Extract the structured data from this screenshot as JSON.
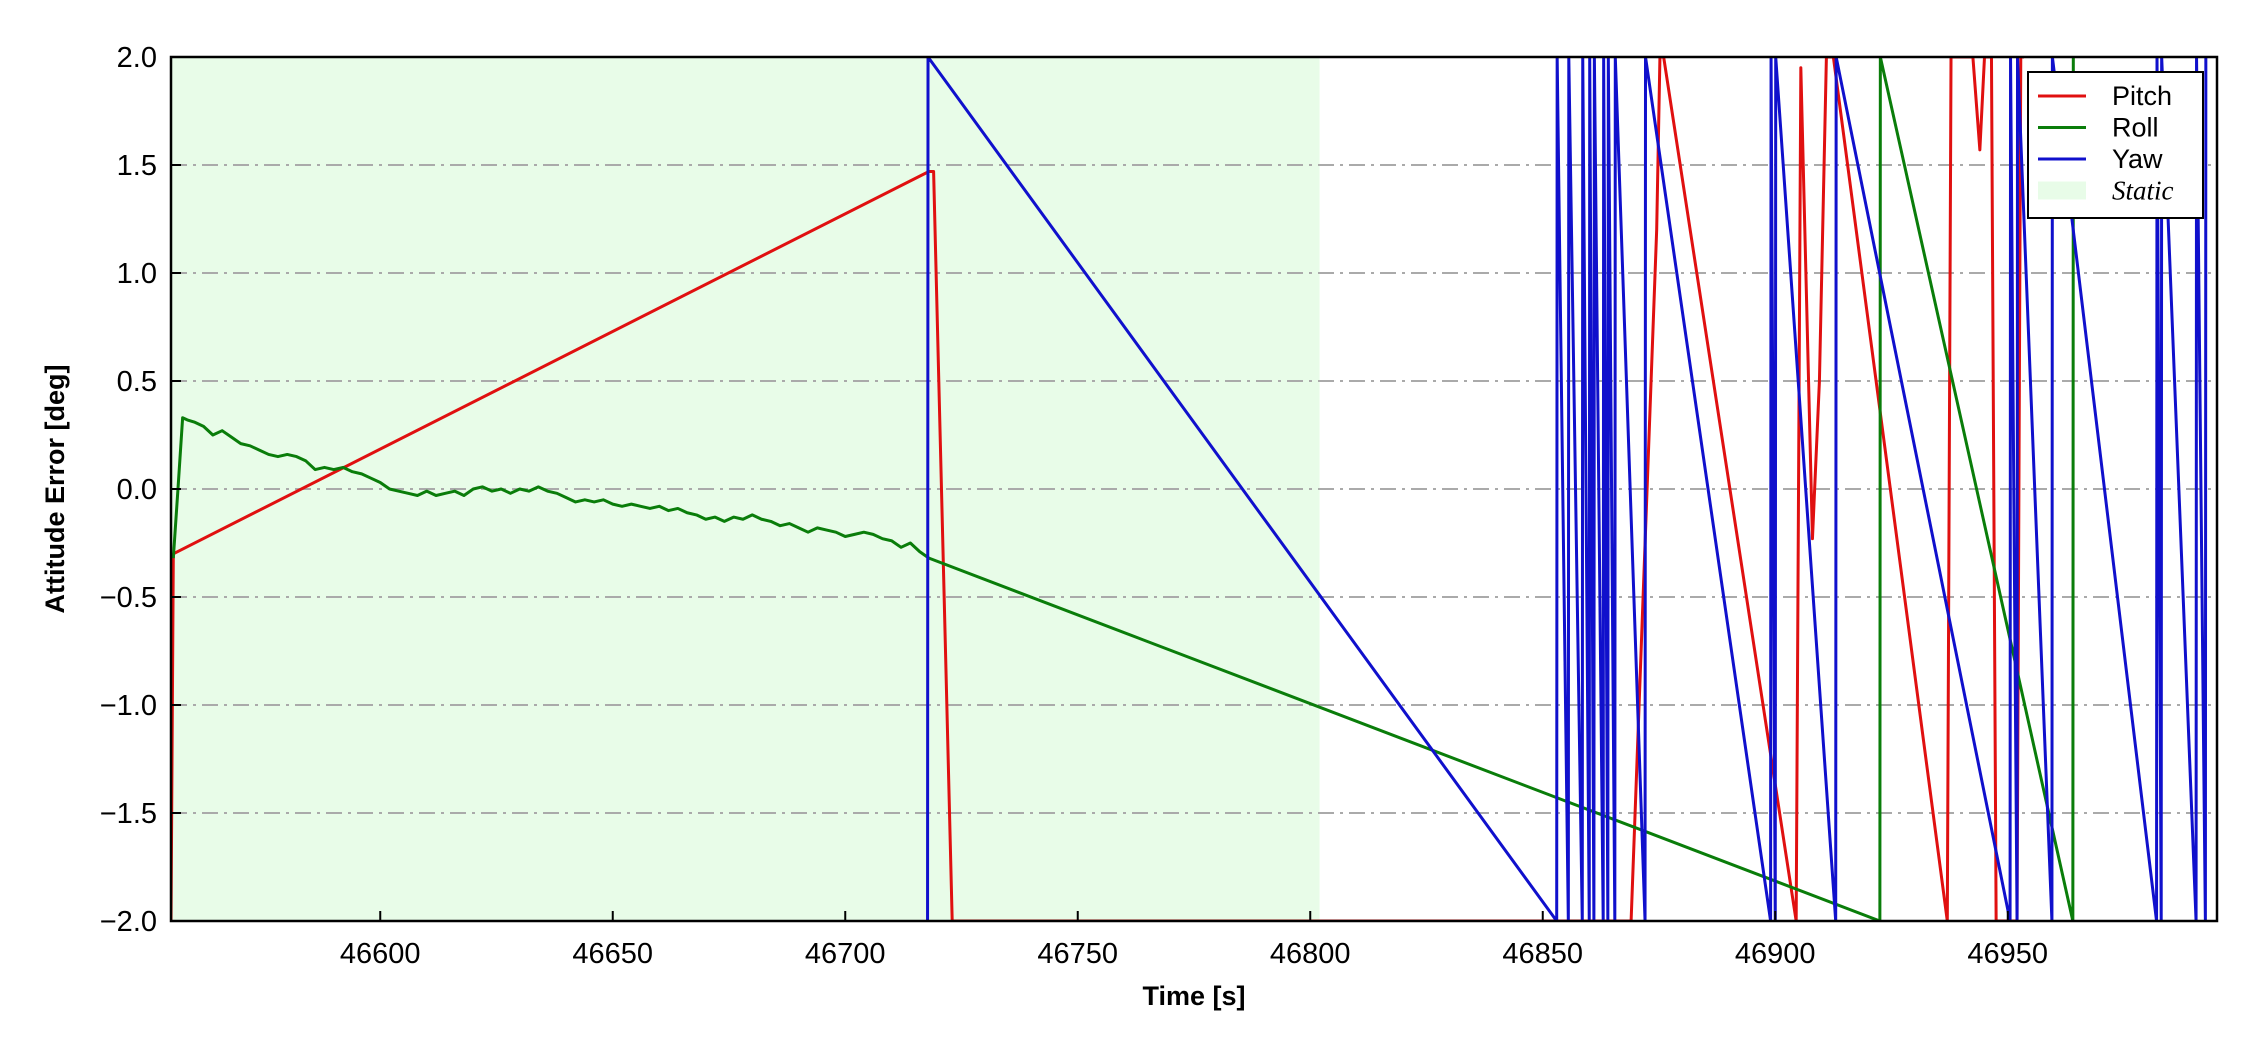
{
  "chart_data": {
    "type": "line",
    "title": "",
    "xlabel": "Time [s]",
    "ylabel": "Attitude Error [deg]",
    "xlim": [
      46555,
      46995
    ],
    "ylim": [
      -2.0,
      2.0
    ],
    "xticks": [
      46600,
      46650,
      46700,
      46750,
      46800,
      46850,
      46900,
      46950
    ],
    "xtick_labels": [
      "46600",
      "46650",
      "46700",
      "46750",
      "46800",
      "46850",
      "46900",
      "46950"
    ],
    "yticks": [
      -2.0,
      -1.5,
      -1.0,
      -0.5,
      0.0,
      0.5,
      1.0,
      1.5,
      2.0
    ],
    "ytick_labels": [
      "−2.0",
      "−1.5",
      "−1.0",
      "−0.5",
      "0.0",
      "0.5",
      "1.0",
      "1.5",
      "2.0"
    ],
    "grid": {
      "y": true,
      "x": false,
      "style": "dash-dot",
      "color": "#aaaaaa"
    },
    "legend": {
      "placement": "top-right"
    },
    "shaded_regions": [
      {
        "name": "Static",
        "x_start": 46555,
        "x_end": 46802,
        "color": "#e8fce8"
      }
    ],
    "series": [
      {
        "name": "Pitch",
        "color": "#e01010",
        "x": [
          46555.0,
          46555.5,
          46718.0,
          46719.0,
          46723.0,
          46869.0,
          46874.5,
          46875.2,
          46876.0,
          46904.5,
          46905.5,
          46908.0,
          46909.5,
          46911.0,
          46911.7,
          46912.5,
          46937.0,
          46937.8,
          46942.5,
          46944.0,
          46945.0,
          46946.5,
          46947.5,
          46952.0,
          46952.8,
          46953.5
        ],
        "values": [
          -2.0,
          -0.3,
          1.47,
          1.47,
          -2.0,
          -2.0,
          1.2,
          2.0,
          2.0,
          -2.0,
          1.95,
          -0.23,
          0.5,
          2.0,
          2.0,
          2.0,
          -2.0,
          2.0,
          2.0,
          1.57,
          2.0,
          2.0,
          -2.0,
          -2.0,
          2.0,
          2.0
        ]
      },
      {
        "name": "Roll",
        "color": "#0a7d0a",
        "x": [
          46555.5,
          46556.5,
          46557.5,
          46558.5,
          46560,
          46562,
          46564,
          46566,
          46568,
          46570,
          46572,
          46574,
          46576,
          46578,
          46580,
          46582,
          46584,
          46586,
          46588,
          46590,
          46592,
          46594,
          46596,
          46598,
          46600,
          46602,
          46604,
          46606,
          46608,
          46610,
          46612,
          46614,
          46616,
          46618,
          46620,
          46622,
          46624,
          46626,
          46628,
          46630,
          46632,
          46634,
          46636,
          46638,
          46640,
          46642,
          46644,
          46646,
          46648,
          46650,
          46652,
          46654,
          46656,
          46658,
          46660,
          46662,
          46664,
          46666,
          46668,
          46670,
          46672,
          46674,
          46676,
          46678,
          46680,
          46682,
          46684,
          46686,
          46688,
          46690,
          46692,
          46694,
          46696,
          46698,
          46700,
          46702,
          46704,
          46706,
          46708,
          46710,
          46712,
          46714,
          46716,
          46718,
          46922.5,
          46922.6,
          46964.0,
          46964.1
        ],
        "values": [
          -0.32,
          0.0,
          0.33,
          0.32,
          0.31,
          0.29,
          0.25,
          0.27,
          0.24,
          0.21,
          0.2,
          0.18,
          0.16,
          0.15,
          0.16,
          0.15,
          0.13,
          0.09,
          0.1,
          0.09,
          0.1,
          0.08,
          0.07,
          0.05,
          0.03,
          0.0,
          -0.01,
          -0.02,
          -0.03,
          -0.01,
          -0.03,
          -0.02,
          -0.01,
          -0.03,
          0.0,
          0.01,
          -0.01,
          0.0,
          -0.02,
          0.0,
          -0.01,
          0.01,
          -0.01,
          -0.02,
          -0.04,
          -0.06,
          -0.05,
          -0.06,
          -0.05,
          -0.07,
          -0.08,
          -0.07,
          -0.08,
          -0.09,
          -0.08,
          -0.1,
          -0.09,
          -0.11,
          -0.12,
          -0.14,
          -0.13,
          -0.15,
          -0.13,
          -0.14,
          -0.12,
          -0.14,
          -0.15,
          -0.17,
          -0.16,
          -0.18,
          -0.2,
          -0.18,
          -0.19,
          -0.2,
          -0.22,
          -0.21,
          -0.2,
          -0.21,
          -0.23,
          -0.24,
          -0.27,
          -0.25,
          -0.29,
          -0.32,
          -2.0,
          2.0,
          -2.0,
          2.0
        ]
      },
      {
        "name": "Yaw",
        "color": "#1010cc",
        "x": [
          46717.7,
          46717.8,
          46853.0,
          46853.1,
          46855.5,
          46855.6,
          46858.5,
          46858.6,
          46860.0,
          46860.1,
          46861.0,
          46861.1,
          46863.0,
          46863.1,
          46864.0,
          46864.1,
          46865.5,
          46865.6,
          46872.0,
          46872.1,
          46899.0,
          46899.1,
          46900.0,
          46900.1,
          46913.0,
          46913.1,
          46950.5,
          46950.6,
          46952.0,
          46952.1,
          46959.5,
          46959.6,
          46982.0,
          46982.1,
          46983.0,
          46983.1,
          46990.5,
          46990.6,
          46992.5,
          46992.6
        ],
        "values": [
          -2.0,
          2.0,
          -2.0,
          2.0,
          -2.0,
          2.0,
          -2.0,
          2.0,
          -2.0,
          2.0,
          -2.0,
          2.0,
          -2.0,
          2.0,
          -2.0,
          2.0,
          -2.0,
          2.0,
          -2.0,
          2.0,
          -2.0,
          2.0,
          -2.0,
          2.0,
          -2.0,
          2.0,
          -2.0,
          2.0,
          -2.0,
          2.0,
          -2.0,
          2.0,
          -2.0,
          2.0,
          -2.0,
          2.0,
          -2.0,
          2.0,
          -2.0,
          2.0
        ]
      }
    ]
  }
}
